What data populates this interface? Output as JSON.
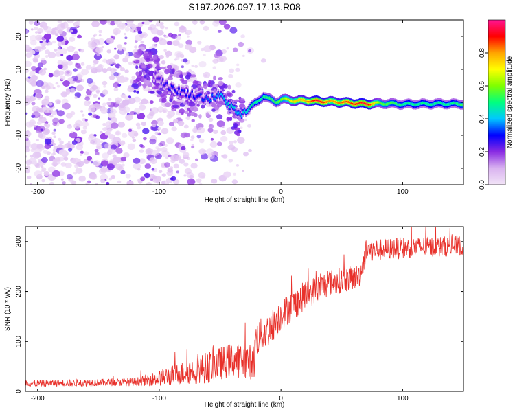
{
  "title": "S197.2026.097.17.13.R08",
  "chart_data": [
    {
      "type": "heatmap",
      "name": "spectrogram",
      "xlabel": "Height of straight line (km)",
      "ylabel": "Frequency (Hz)",
      "xlim": [
        -210,
        150
      ],
      "ylim": [
        -25,
        25
      ],
      "xticks": [
        -200,
        -100,
        0,
        100
      ],
      "yticks": [
        -20,
        -10,
        0,
        10,
        20
      ],
      "colorbar": {
        "label": "Normalized spectral amplitude",
        "range": [
          0,
          1
        ],
        "ticks": [
          0.0,
          0.2,
          0.4,
          0.6,
          0.8
        ],
        "tick_labels": [
          "0.0",
          "0.2",
          "0.4",
          "0.6",
          "0.8"
        ],
        "stops": [
          "#f2e4f7",
          "#d9b3f0",
          "#8a2be2",
          "#0000ff",
          "#00c8ff",
          "#00ff7f",
          "#7fff00",
          "#ffff00",
          "#ffa500",
          "#ff0000",
          "#ff1493"
        ]
      },
      "ridge": {
        "height_km": [
          -110,
          -100,
          -90,
          -80,
          -70,
          -60,
          -50,
          -45,
          -40,
          -35,
          -30,
          -25,
          -20,
          -15,
          -10,
          -5,
          0,
          10,
          20,
          30,
          40,
          50,
          60,
          70,
          80,
          90,
          100,
          110,
          120,
          130,
          140,
          150
        ],
        "frequency_hz": [
          10,
          7,
          4,
          3,
          2,
          1,
          2,
          0,
          -2,
          -4,
          -3,
          -1,
          0,
          2,
          1,
          0,
          1,
          0.5,
          0.5,
          0.3,
          0.2,
          0,
          -0.3,
          -0.5,
          -0.3,
          -0.4,
          -0.6,
          -0.5,
          -0.5,
          -0.4,
          -0.5,
          -0.5
        ],
        "amplitude": [
          0.2,
          0.25,
          0.3,
          0.3,
          0.3,
          0.35,
          0.4,
          0.45,
          0.45,
          0.4,
          0.45,
          0.5,
          0.5,
          0.5,
          0.55,
          0.55,
          0.6,
          0.75,
          0.8,
          0.95,
          0.8,
          0.85,
          0.9,
          0.95,
          0.6,
          0.55,
          0.5,
          0.5,
          0.5,
          0.5,
          0.5,
          0.55
        ]
      },
      "noise_region_km": [
        -210,
        -30
      ]
    },
    {
      "type": "line",
      "name": "snr",
      "xlabel": "Height of straight line (km)",
      "ylabel": "SNR (10 * v/v)",
      "xlim": [
        -210,
        150
      ],
      "ylim": [
        0,
        330
      ],
      "xticks": [
        -200,
        -100,
        0,
        100
      ],
      "yticks": [
        0,
        100,
        200,
        300
      ],
      "color": "#e8302a",
      "trend": {
        "x": [
          -210,
          -120,
          -100,
          -60,
          -40,
          -22,
          -21,
          -10,
          0,
          20,
          40,
          60,
          65,
          70,
          100,
          150
        ],
        "y": [
          15,
          18,
          25,
          45,
          60,
          55,
          100,
          120,
          150,
          190,
          215,
          225,
          230,
          280,
          285,
          290
        ]
      },
      "noise_amplitude": {
        "x": [
          -210,
          -120,
          -100,
          -60,
          -22,
          -21,
          0,
          60,
          70,
          150
        ],
        "y": [
          8,
          10,
          20,
          40,
          45,
          45,
          40,
          30,
          28,
          25
        ]
      }
    }
  ]
}
